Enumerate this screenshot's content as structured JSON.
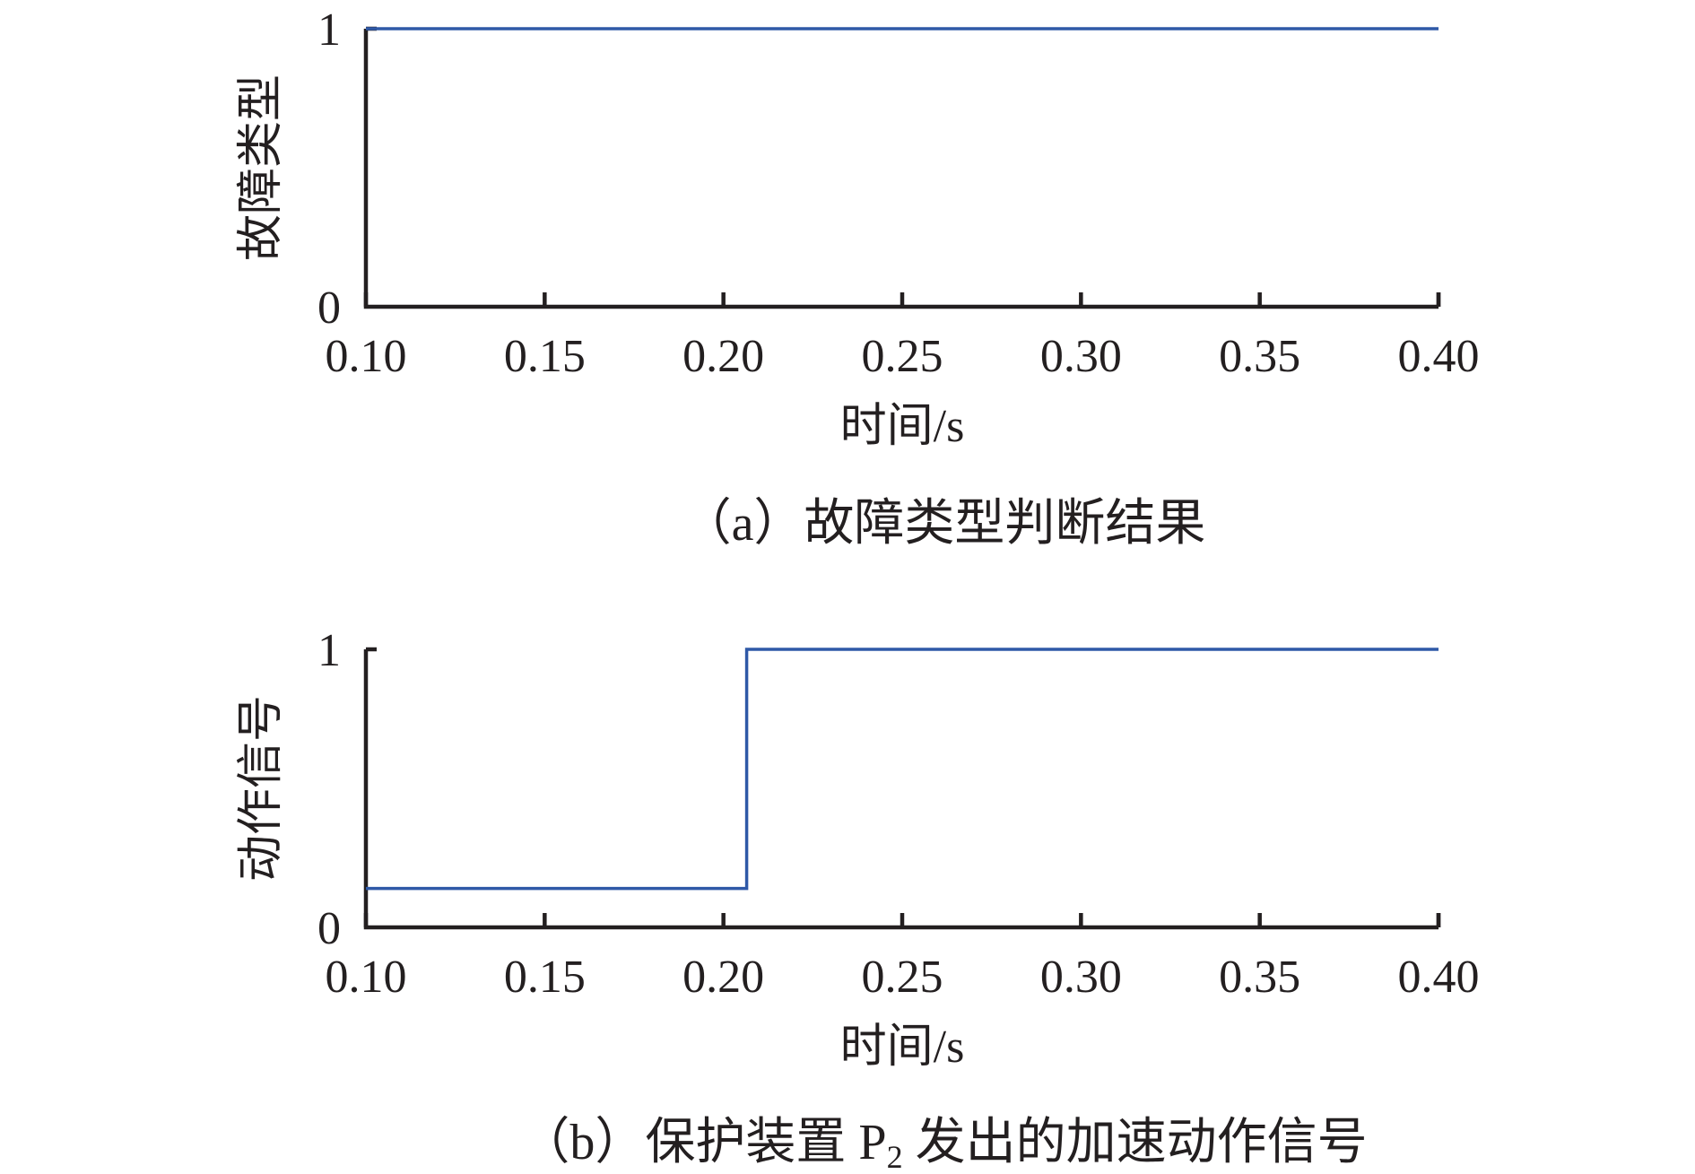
{
  "chart_data": [
    {
      "type": "line",
      "line_shape": "step",
      "caption": "（a）故障类型判断结果",
      "xlabel": "时间/s",
      "ylabel": "故障类型",
      "xlim": [
        0.1,
        0.4
      ],
      "ylim": [
        0,
        1
      ],
      "x_ticks": [
        "0.10",
        "0.15",
        "0.20",
        "0.25",
        "0.30",
        "0.35",
        "0.40"
      ],
      "y_ticks": [
        "0",
        "1"
      ],
      "grid": false,
      "series": [
        {
          "color": "#2f59a7",
          "x": [
            0.1,
            0.4
          ],
          "y": [
            1,
            1
          ]
        }
      ]
    },
    {
      "type": "line",
      "line_shape": "step",
      "caption_prefix": "（b）保护装置 P",
      "caption_subscript": "2",
      "caption_suffix": " 发出的加速动作信号",
      "xlabel": "时间/s",
      "ylabel": "动作信号",
      "xlim": [
        0.1,
        0.4
      ],
      "ylim": [
        0,
        1
      ],
      "x_ticks": [
        "0.10",
        "0.15",
        "0.20",
        "0.25",
        "0.30",
        "0.35",
        "0.40"
      ],
      "y_ticks": [
        "0",
        "1"
      ],
      "grid": false,
      "series": [
        {
          "color": "#2f59a7",
          "x": [
            0.1,
            0.2065,
            0.2065,
            0.4
          ],
          "y": [
            0.14,
            0.14,
            1,
            1
          ]
        }
      ]
    }
  ]
}
